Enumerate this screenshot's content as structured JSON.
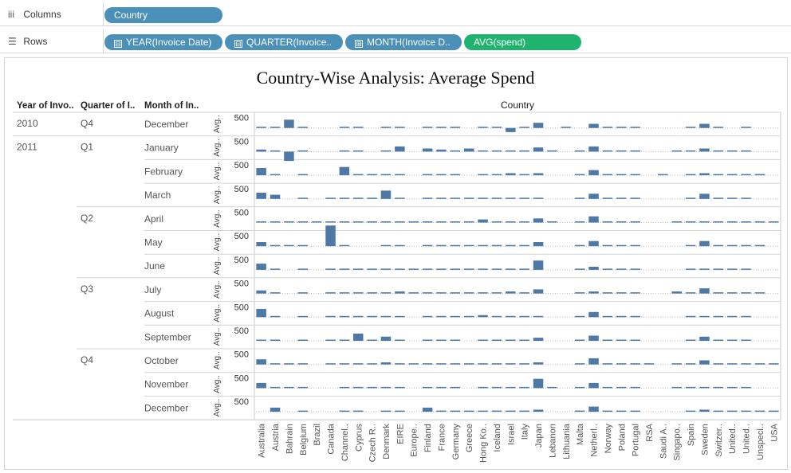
{
  "shelves": {
    "columns": {
      "label": "Columns",
      "icon": "columns-icon",
      "pills": [
        {
          "text": "Country",
          "type": "dimension"
        }
      ]
    },
    "rows": {
      "label": "Rows",
      "icon": "rows-icon",
      "pills": [
        {
          "text": "YEAR(Invoice Date)",
          "type": "dimension",
          "expand": "⊟"
        },
        {
          "text": "QUARTER(Invoice..",
          "type": "dimension",
          "expand": "⊟"
        },
        {
          "text": "MONTH(Invoice D..",
          "type": "dimension",
          "expand": "⊞"
        },
        {
          "text": "AVG(spend)",
          "type": "measure"
        }
      ]
    }
  },
  "colors": {
    "bar": "#4e79a7",
    "pill_dimension": "#4a90b8",
    "pill_measure": "#1fb36e"
  },
  "chart_data": {
    "type": "bar",
    "title": "Country-Wise Analysis: Average Spend",
    "column_header": "Country",
    "row_headers": [
      "Year of Invo..",
      "Quarter of I..",
      "Month of In.."
    ],
    "axis_label": "Avg..",
    "axis_tick": 500,
    "categories": [
      "Australia",
      "Austria",
      "Bahrain",
      "Belgium",
      "Brazil",
      "Canada",
      "Channel..",
      "Cyprus",
      "Czech R..",
      "Denmark",
      "EIRE",
      "Europe..",
      "Finland",
      "France",
      "Germany",
      "Greece",
      "Hong Ko..",
      "Iceland",
      "Israel",
      "Italy",
      "Japan",
      "Lebanon",
      "Lithuania",
      "Malta",
      "Netherl..",
      "Norway",
      "Poland",
      "Portugal",
      "RSA",
      "Saudi A..",
      "Singapo..",
      "Spain",
      "Sweden",
      "Switzer..",
      "United..",
      "United..",
      "Unspeci..",
      "USA"
    ],
    "rows": [
      {
        "year": "2010",
        "quarter": "Q4",
        "month": "December",
        "values": [
          50,
          50,
          400,
          50,
          null,
          null,
          50,
          50,
          null,
          50,
          50,
          null,
          50,
          50,
          50,
          null,
          50,
          50,
          -200,
          50,
          250,
          null,
          50,
          null,
          200,
          50,
          50,
          50,
          null,
          null,
          null,
          50,
          200,
          50,
          null,
          50,
          null,
          null
        ]
      },
      {
        "year": "2011",
        "quarter": "Q1",
        "month": "January",
        "values": [
          100,
          50,
          -450,
          50,
          null,
          null,
          50,
          50,
          null,
          50,
          250,
          null,
          150,
          100,
          50,
          150,
          50,
          50,
          50,
          50,
          200,
          50,
          null,
          50,
          250,
          50,
          50,
          50,
          null,
          null,
          50,
          50,
          150,
          50,
          50,
          50,
          null,
          null
        ]
      },
      {
        "year": "",
        "quarter": "",
        "month": "February",
        "values": [
          350,
          50,
          null,
          50,
          null,
          null,
          400,
          50,
          50,
          50,
          50,
          null,
          50,
          50,
          50,
          null,
          50,
          50,
          100,
          50,
          100,
          null,
          null,
          50,
          250,
          50,
          50,
          50,
          null,
          50,
          null,
          50,
          100,
          50,
          50,
          50,
          50,
          null
        ]
      },
      {
        "year": "",
        "quarter": "",
        "month": "March",
        "values": [
          300,
          200,
          null,
          50,
          null,
          50,
          50,
          50,
          50,
          400,
          50,
          null,
          50,
          50,
          50,
          50,
          50,
          50,
          50,
          50,
          50,
          null,
          null,
          50,
          250,
          50,
          50,
          50,
          null,
          null,
          null,
          50,
          250,
          50,
          50,
          50,
          null,
          null
        ]
      },
      {
        "year": "",
        "quarter": "Q2",
        "month": "April",
        "values": [
          50,
          50,
          50,
          50,
          50,
          50,
          50,
          50,
          50,
          50,
          50,
          50,
          50,
          50,
          50,
          50,
          150,
          50,
          50,
          50,
          200,
          50,
          null,
          50,
          300,
          50,
          50,
          50,
          null,
          null,
          50,
          50,
          50,
          50,
          50,
          50,
          50,
          50
        ]
      },
      {
        "year": "",
        "quarter": "",
        "month": "May",
        "values": [
          200,
          50,
          50,
          50,
          null,
          1000,
          50,
          null,
          null,
          50,
          50,
          null,
          50,
          50,
          50,
          50,
          50,
          50,
          50,
          50,
          200,
          null,
          null,
          50,
          250,
          50,
          50,
          50,
          null,
          null,
          null,
          50,
          250,
          50,
          50,
          50,
          50,
          null
        ]
      },
      {
        "year": "",
        "quarter": "",
        "month": "June",
        "values": [
          300,
          50,
          null,
          50,
          null,
          50,
          50,
          50,
          50,
          50,
          50,
          50,
          50,
          50,
          50,
          50,
          50,
          50,
          50,
          50,
          450,
          null,
          null,
          50,
          150,
          50,
          50,
          50,
          null,
          null,
          null,
          50,
          50,
          50,
          50,
          50,
          null,
          null
        ]
      },
      {
        "year": "",
        "quarter": "Q3",
        "month": "July",
        "values": [
          150,
          50,
          null,
          50,
          null,
          50,
          50,
          50,
          50,
          50,
          100,
          50,
          50,
          50,
          50,
          50,
          50,
          50,
          100,
          50,
          200,
          null,
          null,
          50,
          100,
          50,
          50,
          50,
          null,
          null,
          100,
          50,
          250,
          50,
          50,
          50,
          50,
          null
        ]
      },
      {
        "year": "",
        "quarter": "",
        "month": "August",
        "values": [
          400,
          50,
          null,
          50,
          null,
          50,
          50,
          50,
          50,
          50,
          50,
          null,
          50,
          50,
          50,
          50,
          100,
          50,
          50,
          50,
          50,
          null,
          null,
          50,
          250,
          50,
          50,
          50,
          null,
          null,
          null,
          50,
          50,
          50,
          50,
          50,
          null,
          null
        ]
      },
      {
        "year": "",
        "quarter": "",
        "month": "September",
        "values": [
          50,
          50,
          null,
          50,
          null,
          50,
          50,
          350,
          50,
          200,
          50,
          null,
          50,
          50,
          50,
          null,
          50,
          50,
          50,
          50,
          150,
          null,
          null,
          50,
          250,
          50,
          50,
          50,
          null,
          null,
          null,
          50,
          200,
          50,
          50,
          50,
          null,
          null
        ]
      },
      {
        "year": "",
        "quarter": "Q4",
        "month": "October",
        "values": [
          250,
          50,
          50,
          50,
          null,
          50,
          50,
          50,
          50,
          100,
          50,
          50,
          50,
          50,
          50,
          50,
          50,
          50,
          50,
          50,
          100,
          null,
          null,
          50,
          300,
          50,
          50,
          50,
          50,
          null,
          50,
          50,
          200,
          50,
          50,
          50,
          50,
          50
        ]
      },
      {
        "year": "",
        "quarter": "",
        "month": "November",
        "values": [
          250,
          50,
          50,
          50,
          null,
          null,
          50,
          50,
          50,
          50,
          50,
          null,
          50,
          50,
          50,
          null,
          50,
          50,
          50,
          50,
          450,
          50,
          null,
          50,
          250,
          50,
          50,
          50,
          null,
          null,
          50,
          50,
          50,
          50,
          50,
          50,
          null,
          null
        ]
      },
      {
        "year": "",
        "quarter": "",
        "month": "December",
        "values": [
          null,
          200,
          null,
          50,
          null,
          null,
          50,
          50,
          null,
          50,
          50,
          null,
          200,
          50,
          50,
          50,
          50,
          50,
          50,
          50,
          100,
          null,
          null,
          50,
          250,
          50,
          50,
          50,
          null,
          null,
          null,
          50,
          100,
          50,
          50,
          50,
          50,
          50
        ]
      }
    ],
    "grid": "dotted-baseline"
  }
}
